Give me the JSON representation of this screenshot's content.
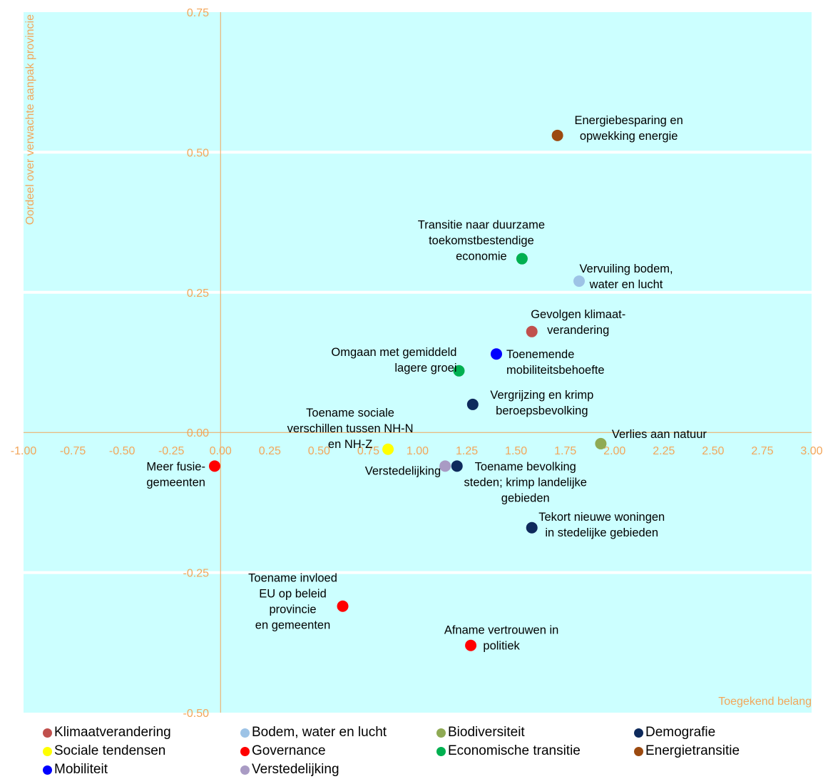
{
  "chart_data": {
    "type": "scatter",
    "xlabel": "Toegekend belang",
    "ylabel": "Oordeel over verwachte aanpak provincie",
    "xlim": [
      -1.0,
      3.0
    ],
    "ylim": [
      -0.5,
      0.75
    ],
    "x_ticks": [
      "-1.00",
      "-0.75",
      "-0.50",
      "-0.25",
      "0.00",
      "0.25",
      "0.50",
      "0.75",
      "1.00",
      "1.25",
      "1.50",
      "1.75",
      "2.00",
      "2.25",
      "2.50",
      "2.75",
      "3.00"
    ],
    "y_ticks": [
      "-0.50",
      "-0.25",
      "0.00",
      "0.25",
      "0.50",
      "0.75"
    ],
    "grid": "horizontal",
    "legend_position": "bottom",
    "series": [
      {
        "name": "Klimaatverandering",
        "color": "#c0504d",
        "points": [
          {
            "x": 1.58,
            "y": 0.18,
            "label": [
              "Gevolgen klimaat-",
              "verandering"
            ]
          }
        ]
      },
      {
        "name": "Bodem, water en lucht",
        "color": "#9dc3e6",
        "points": [
          {
            "x": 1.82,
            "y": 0.27,
            "label": [
              "Vervuiling bodem,",
              "water en lucht"
            ]
          }
        ]
      },
      {
        "name": "Biodiversiteit",
        "color": "#8faa54",
        "points": [
          {
            "x": 1.93,
            "y": -0.02,
            "label": [
              "Verlies aan natuur"
            ]
          }
        ]
      },
      {
        "name": "Demografie",
        "color": "#0e2a5c",
        "points": [
          {
            "x": 1.28,
            "y": 0.05,
            "label": [
              "Vergrijzing en krimp",
              "beroepsbevolking"
            ]
          },
          {
            "x": 1.2,
            "y": -0.06,
            "label": [
              "Toename bevolking",
              "steden; krimp landelijke",
              "gebieden"
            ]
          },
          {
            "x": 1.58,
            "y": -0.17,
            "label": [
              "Tekort nieuwe woningen",
              "in stedelijke gebieden"
            ]
          }
        ]
      },
      {
        "name": "Sociale tendensen",
        "color": "#ffff00",
        "points": [
          {
            "x": 0.85,
            "y": -0.03,
            "label": [
              "Toename sociale",
              "verschillen tussen NH-N",
              "en NH-Z"
            ]
          }
        ]
      },
      {
        "name": "Governance",
        "color": "#ff0000",
        "points": [
          {
            "x": -0.03,
            "y": -0.06,
            "label": [
              "Meer fusie-",
              "gemeenten"
            ]
          },
          {
            "x": 0.62,
            "y": -0.31,
            "label": [
              "Toename invloed",
              "EU op beleid",
              "provincie",
              "en gemeenten"
            ]
          },
          {
            "x": 1.27,
            "y": -0.38,
            "label": [
              "Afname vertrouwen in",
              "politiek"
            ]
          }
        ]
      },
      {
        "name": "Economische transitie",
        "color": "#00b050",
        "points": [
          {
            "x": 1.53,
            "y": 0.31,
            "label": [
              "Transitie naar duurzame",
              "toekomstbestendige",
              "economie"
            ]
          },
          {
            "x": 1.21,
            "y": 0.11,
            "label": [
              "Omgaan met gemiddeld",
              "lagere groei"
            ]
          }
        ]
      },
      {
        "name": "Energietransitie",
        "color": "#9c4a10",
        "points": [
          {
            "x": 1.71,
            "y": 0.53,
            "label": [
              "Energiebesparing en",
              "opwekking energie"
            ]
          }
        ]
      },
      {
        "name": "Mobiliteit",
        "color": "#0000ff",
        "points": [
          {
            "x": 1.4,
            "y": 0.14,
            "label": [
              "Toenemende",
              "mobiliteitsbehoefte"
            ]
          }
        ]
      },
      {
        "name": "Verstedelijking",
        "color": "#a99bc4",
        "points": [
          {
            "x": 1.14,
            "y": -0.06,
            "label": [
              "Verstedelijking"
            ]
          }
        ]
      }
    ]
  }
}
